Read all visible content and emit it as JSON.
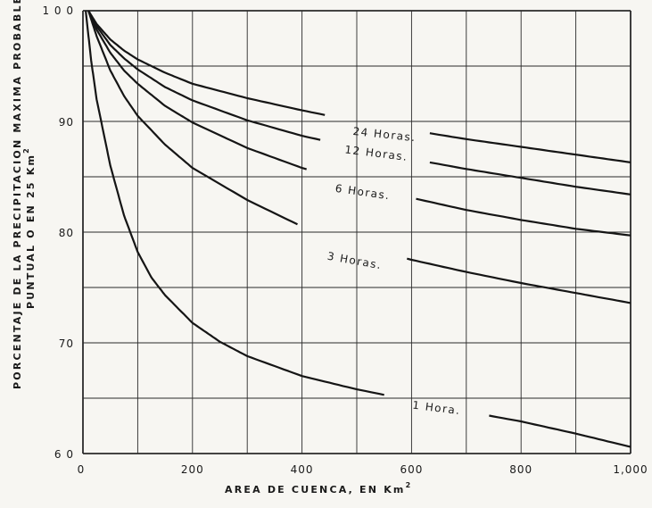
{
  "chart_data": {
    "type": "line",
    "xlabel": "AREA DE CUENCA, EN Km",
    "xlabel_sup": "2",
    "ylabel_line1": "PORCENTAJE DE LA PRECIPITACION MAXIMA PROBABLE",
    "ylabel_line2": "PUNTUAL O EN 25 Km",
    "ylabel_sup": "2",
    "xlim": [
      0,
      1000
    ],
    "ylim": [
      60,
      100
    ],
    "x_ticks": [
      0,
      200,
      400,
      600,
      800,
      1000
    ],
    "x_tick_labels": [
      "0",
      "200",
      "400",
      "600",
      "800",
      "1,000"
    ],
    "y_ticks": [
      60,
      70,
      80,
      90,
      100
    ],
    "y_tick_labels": [
      "6 0",
      "70",
      "80",
      "90",
      "1 0 0"
    ],
    "grid": true,
    "grid_x_step": 100,
    "grid_y_step": 5,
    "series": [
      {
        "name": "24 Horas.",
        "x": [
          10,
          25,
          50,
          75,
          100,
          150,
          200,
          300,
          400,
          500,
          600,
          700,
          800,
          900,
          1000
        ],
        "y": [
          100,
          98.8,
          97.4,
          96.4,
          95.6,
          94.4,
          93.4,
          92.1,
          91.0,
          90.0,
          89.2,
          88.4,
          87.7,
          87.0,
          86.3
        ]
      },
      {
        "name": "12 Horas.",
        "x": [
          10,
          25,
          50,
          75,
          100,
          150,
          200,
          300,
          400,
          500,
          600,
          700,
          800,
          900,
          1000
        ],
        "y": [
          100,
          98.6,
          96.9,
          95.7,
          94.7,
          93.1,
          91.9,
          90.1,
          88.7,
          87.6,
          86.6,
          85.7,
          84.9,
          84.1,
          83.4
        ]
      },
      {
        "name": "6 Horas.",
        "x": [
          10,
          25,
          50,
          75,
          100,
          150,
          200,
          300,
          400,
          500,
          600,
          700,
          800,
          900,
          1000
        ],
        "y": [
          100,
          98.3,
          96.2,
          94.6,
          93.4,
          91.4,
          89.9,
          87.6,
          85.8,
          84.3,
          83.1,
          82.0,
          81.1,
          80.3,
          79.7
        ]
      },
      {
        "name": "3 Horas.",
        "x": [
          10,
          25,
          50,
          75,
          100,
          150,
          200,
          300,
          400,
          500,
          600,
          700,
          800,
          900,
          1000
        ],
        "y": [
          100,
          97.7,
          94.6,
          92.3,
          90.5,
          87.9,
          85.8,
          82.9,
          80.5,
          78.8,
          77.5,
          76.4,
          75.4,
          74.5,
          73.6
        ]
      },
      {
        "name": "1 Hora.",
        "x": [
          5,
          15,
          25,
          50,
          75,
          100,
          125,
          150,
          200,
          250,
          300,
          400,
          500,
          600,
          700,
          800,
          900,
          1000
        ],
        "y": [
          100,
          95.5,
          92.0,
          86.0,
          81.5,
          78.2,
          75.9,
          74.3,
          71.8,
          70.1,
          68.8,
          67.0,
          65.8,
          64.8,
          63.8,
          62.9,
          61.8,
          60.6
        ]
      }
    ]
  }
}
